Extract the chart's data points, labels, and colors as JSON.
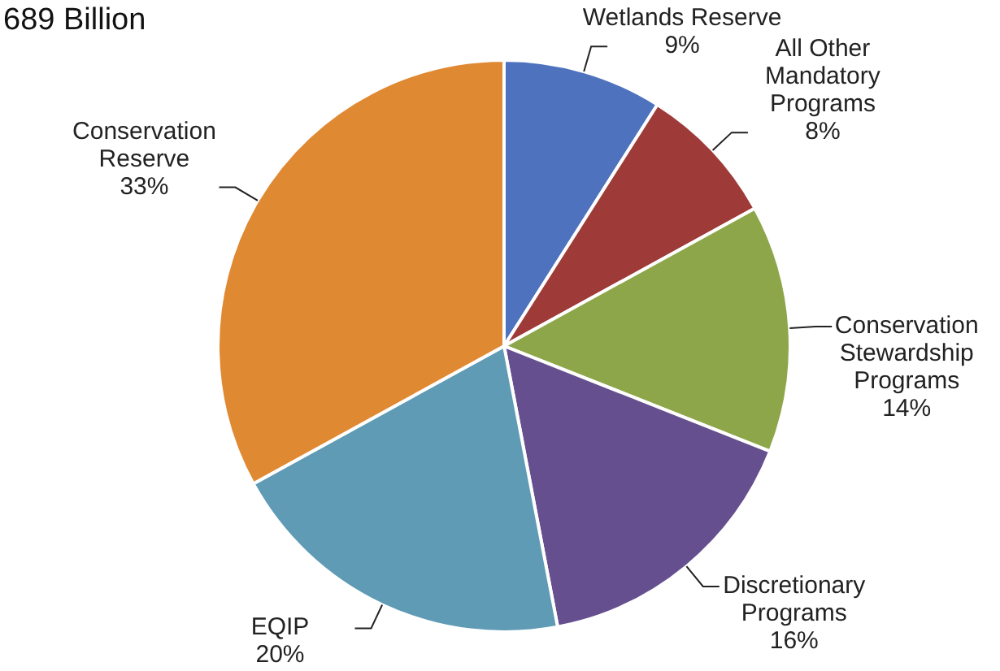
{
  "chart_data": {
    "type": "pie",
    "title": "689 Billion",
    "categories": [
      "Wetlands Reserve",
      "All Other Mandatory Programs",
      "Conservation Stewardship Programs",
      "Discretionary Programs",
      "EQIP",
      "Conservation Reserve"
    ],
    "values": [
      9,
      8,
      14,
      16,
      20,
      33
    ],
    "value_labels": [
      "9%",
      "8%",
      "14%",
      "16%",
      "20%",
      "33%"
    ],
    "colors": [
      "#4f72be",
      "#9e3b39",
      "#8ea64a",
      "#654f8e",
      "#5f9bb5",
      "#e08933"
    ],
    "legend": false
  }
}
